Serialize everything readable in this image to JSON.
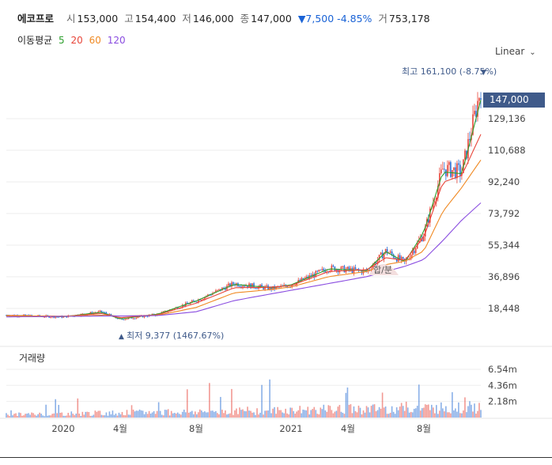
{
  "header": {
    "name": "에코프로",
    "open_label": "시",
    "open": "153,000",
    "high_label": "고",
    "high": "154,400",
    "low_label": "저",
    "low": "146,000",
    "close_label": "종",
    "close": "147,000",
    "change": "▼7,500 -4.85%",
    "volume_label": "거",
    "volume": "753,178"
  },
  "ma_legend": {
    "label": "이동평균",
    "items": [
      {
        "text": "5",
        "color": "#2ea02e"
      },
      {
        "text": "20",
        "color": "#e8463a"
      },
      {
        "text": "60",
        "color": "#f08a24"
      },
      {
        "text": "120",
        "color": "#8a4de0"
      }
    ]
  },
  "scale_selector": "Linear",
  "annotations": {
    "high": "최고 161,100 (-8.75%)",
    "low": "최저 9,377 (1467.67%)",
    "split": "합/분",
    "current_price": "147,000"
  },
  "volume_title": "거래량",
  "colors": {
    "up": "#e8463a",
    "down": "#2a6fd6",
    "ma5": "#2ea02e",
    "ma20": "#e8463a",
    "ma60": "#f08a24",
    "ma120": "#8a4de0",
    "tag": "#3f5a8a"
  },
  "chart_data": [
    {
      "type": "candlestick",
      "yticks": [
        "18,448",
        "36,896",
        "55,344",
        "73,792",
        "92,240",
        "110,688",
        "129,136"
      ],
      "ylim": [
        0,
        166000
      ],
      "xticks": [
        "2020",
        "4월",
        "8월",
        "2021",
        "4월",
        "8월"
      ],
      "x": [
        "2019-10",
        "2019-12",
        "2020-01",
        "2020-03",
        "2020-04",
        "2020-06",
        "2020-08",
        "2020-10",
        "2020-12",
        "2021-01",
        "2021-03",
        "2021-05",
        "2021-06",
        "2021-07",
        "2021-08",
        "2021-09",
        "2021-10",
        "2021-11"
      ],
      "close_approx": [
        14500,
        13800,
        13500,
        16500,
        12000,
        15000,
        23000,
        33000,
        30000,
        32000,
        42000,
        40000,
        52000,
        45000,
        62000,
        100000,
        98000,
        147000
      ],
      "ma_series": [
        {
          "name": "5",
          "values": [
            14400,
            13900,
            13600,
            16200,
            12300,
            15200,
            22800,
            32500,
            30500,
            32200,
            41500,
            40500,
            51500,
            45500,
            63000,
            98000,
            97000,
            140000
          ]
        },
        {
          "name": "20",
          "values": [
            14300,
            14000,
            13700,
            15500,
            13000,
            14800,
            21500,
            30500,
            30800,
            31800,
            40000,
            41000,
            48000,
            46500,
            60000,
            92000,
            96000,
            120000
          ]
        },
        {
          "name": "60",
          "values": [
            14000,
            14000,
            13900,
            14500,
            14000,
            14500,
            19000,
            27500,
            29500,
            31000,
            37000,
            40000,
            44000,
            46000,
            52000,
            75000,
            89000,
            105000
          ]
        },
        {
          "name": "120",
          "values": [
            13500,
            13700,
            13800,
            14000,
            14000,
            14300,
            16500,
            23000,
            27000,
            29000,
            33000,
            37000,
            40000,
            43000,
            47000,
            58000,
            70000,
            80000
          ]
        }
      ]
    },
    {
      "type": "bar",
      "title": "거래량",
      "yticks": [
        "2.18m",
        "4.36m",
        "6.54m"
      ],
      "ylim": [
        0,
        7500000
      ]
    }
  ]
}
